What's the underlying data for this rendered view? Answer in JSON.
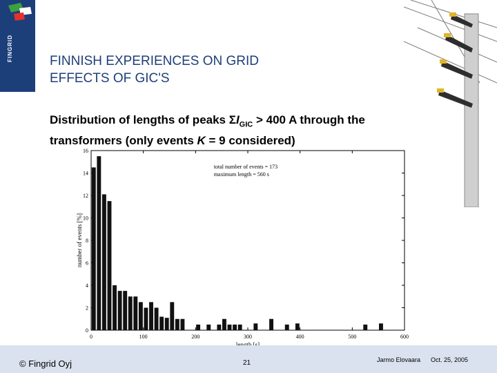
{
  "logo": {
    "name": "FINGRID",
    "brand_color": "#1c3f7a",
    "accent_color": "#e4312b",
    "green_color": "#3da040"
  },
  "slide": {
    "title_line1": "FINNISH EXPERIENCES ON GRID",
    "title_line2": "EFFECTS OF GIC'S",
    "subtitle_part1": "Distribution of lengths of peaks Σ",
    "subtitle_I": "I",
    "subtitle_sub": "GIC",
    "subtitle_part2": " > 400 A through the",
    "subtitle_line2_part1": "transformers (only events ",
    "subtitle_K": "K",
    "subtitle_line2_part2": " = 9 considered)"
  },
  "footer": {
    "copyright": "© Fingrid Oyj",
    "page_number": "21",
    "author": "Jarmo Elovaara",
    "date": "Oct. 25, 2005"
  },
  "chart_data": {
    "type": "bar",
    "xlabel": "length [s]",
    "ylabel": "number of events [%]",
    "xlim": [
      0,
      600
    ],
    "ylim": [
      0,
      16
    ],
    "xticks": [
      0,
      100,
      200,
      300,
      400,
      500,
      600
    ],
    "yticks": [
      0,
      2,
      4,
      6,
      8,
      10,
      12,
      14,
      16
    ],
    "bin_width_s": 10,
    "annotations": [
      "total number of events = 173",
      "maximum length = 560 s"
    ],
    "x": [
      5,
      15,
      25,
      35,
      45,
      55,
      65,
      75,
      85,
      95,
      105,
      115,
      125,
      135,
      145,
      155,
      165,
      175,
      205,
      225,
      245,
      255,
      265,
      275,
      285,
      315,
      345,
      375,
      395,
      525,
      555
    ],
    "values": [
      14.5,
      15.5,
      12.1,
      11.5,
      4.0,
      3.5,
      3.5,
      3.0,
      3.0,
      2.5,
      2.0,
      2.5,
      2.0,
      1.2,
      1.1,
      2.5,
      1.0,
      1.0,
      0.5,
      0.5,
      0.5,
      1.0,
      0.5,
      0.5,
      0.5,
      0.6,
      1.0,
      0.5,
      0.6,
      0.5,
      0.6
    ]
  }
}
